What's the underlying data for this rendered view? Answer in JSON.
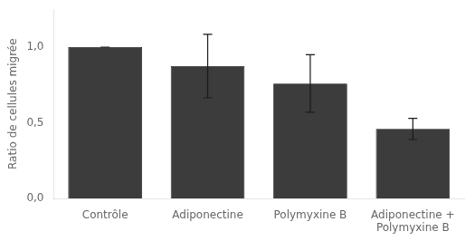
{
  "chart_data": {
    "type": "bar",
    "categories": [
      "Contrôle",
      "Adiponectine",
      "Polymyxine B",
      "Adiponectine +\nPolymyxine B"
    ],
    "values": [
      1.0,
      0.875,
      0.76,
      0.46
    ],
    "errors": [
      0.0,
      0.21,
      0.19,
      0.07
    ],
    "color": "#3c3c3c",
    "ylabel": "Ratio de cellules migrée",
    "ylim": [
      0.0,
      1.25
    ],
    "yticks": [
      {
        "value": 0.0,
        "label": "0,0"
      },
      {
        "value": 0.5,
        "label": "0,5"
      },
      {
        "value": 1.0,
        "label": "1,0"
      }
    ],
    "grid": false
  }
}
